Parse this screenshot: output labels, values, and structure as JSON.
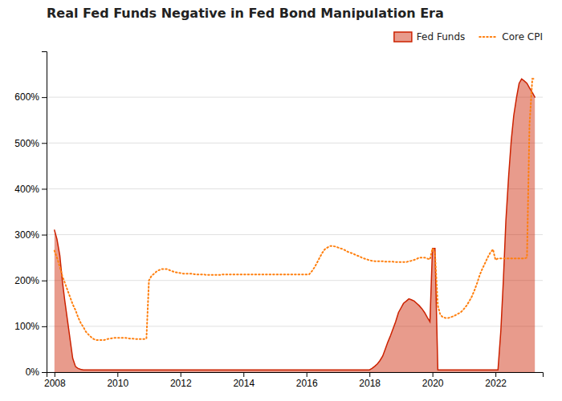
{
  "chart_data": {
    "type": "line",
    "title": "Real Fed Funds Negative in Fed Bond Manipulation Era",
    "x": [
      2008.0,
      2008.08,
      2008.17,
      2008.25,
      2008.33,
      2008.42,
      2008.5,
      2008.58,
      2008.67,
      2008.75,
      2008.83,
      2008.92,
      2009.0,
      2009.08,
      2009.17,
      2009.25,
      2009.33,
      2009.42,
      2009.5,
      2009.58,
      2009.67,
      2009.75,
      2009.83,
      2009.92,
      2010.0,
      2010.08,
      2010.17,
      2010.25,
      2010.33,
      2010.42,
      2010.5,
      2010.58,
      2010.67,
      2010.75,
      2010.83,
      2010.92,
      2011.0,
      2011.08,
      2011.17,
      2011.25,
      2011.33,
      2011.42,
      2011.5,
      2011.58,
      2011.67,
      2011.75,
      2011.83,
      2011.92,
      2012.0,
      2012.08,
      2012.17,
      2012.25,
      2012.33,
      2012.42,
      2012.5,
      2012.58,
      2012.67,
      2012.75,
      2012.83,
      2012.92,
      2013.0,
      2013.08,
      2013.17,
      2013.25,
      2013.33,
      2013.42,
      2013.5,
      2013.58,
      2013.67,
      2013.75,
      2013.83,
      2013.92,
      2014.0,
      2014.08,
      2014.17,
      2014.25,
      2014.33,
      2014.42,
      2014.5,
      2014.58,
      2014.67,
      2014.75,
      2014.83,
      2014.92,
      2015.0,
      2015.08,
      2015.17,
      2015.25,
      2015.33,
      2015.42,
      2015.5,
      2015.58,
      2015.67,
      2015.75,
      2015.83,
      2015.92,
      2016.0,
      2016.08,
      2016.17,
      2016.25,
      2016.33,
      2016.42,
      2016.5,
      2016.58,
      2016.67,
      2016.75,
      2016.83,
      2016.92,
      2017.0,
      2017.08,
      2017.17,
      2017.25,
      2017.33,
      2017.42,
      2017.5,
      2017.58,
      2017.67,
      2017.75,
      2017.83,
      2017.92,
      2018.0,
      2018.08,
      2018.17,
      2018.25,
      2018.33,
      2018.42,
      2018.5,
      2018.58,
      2018.67,
      2018.75,
      2018.83,
      2018.92,
      2019.0,
      2019.08,
      2019.17,
      2019.25,
      2019.33,
      2019.42,
      2019.5,
      2019.58,
      2019.67,
      2019.75,
      2019.83,
      2019.92,
      2020.0,
      2020.08,
      2020.17,
      2020.25,
      2020.33,
      2020.42,
      2020.5,
      2020.58,
      2020.67,
      2020.75,
      2020.83,
      2020.92,
      2021.0,
      2021.08,
      2021.17,
      2021.25,
      2021.33,
      2021.42,
      2021.5,
      2021.58,
      2021.67,
      2021.75,
      2021.83,
      2021.92,
      2022.0,
      2022.08,
      2022.17,
      2022.25,
      2022.33,
      2022.42,
      2022.5,
      2022.58,
      2022.67,
      2022.75,
      2022.83,
      2022.92,
      2023.0,
      2023.08,
      2023.17,
      2023.25
    ],
    "series": [
      {
        "name": "Fed Funds",
        "type": "area",
        "color": "#cc2200",
        "values": [
          310,
          290,
          255,
          200,
          155,
          110,
          70,
          30,
          12,
          8,
          6,
          5,
          5,
          5,
          5,
          5,
          5,
          5,
          5,
          5,
          5,
          5,
          5,
          5,
          5,
          5,
          5,
          5,
          5,
          5,
          5,
          5,
          5,
          5,
          5,
          5,
          5,
          5,
          5,
          5,
          5,
          5,
          5,
          5,
          5,
          5,
          5,
          5,
          5,
          5,
          5,
          5,
          5,
          5,
          5,
          5,
          5,
          5,
          5,
          5,
          5,
          5,
          5,
          5,
          5,
          5,
          5,
          5,
          5,
          5,
          5,
          5,
          5,
          5,
          5,
          5,
          5,
          5,
          5,
          5,
          5,
          5,
          5,
          5,
          5,
          5,
          5,
          5,
          5,
          5,
          5,
          5,
          5,
          5,
          5,
          5,
          5,
          5,
          5,
          5,
          5,
          5,
          5,
          5,
          5,
          5,
          5,
          5,
          5,
          5,
          5,
          5,
          5,
          5,
          5,
          5,
          5,
          5,
          5,
          5,
          5,
          8,
          13,
          18,
          25,
          35,
          50,
          65,
          80,
          95,
          110,
          130,
          140,
          150,
          155,
          160,
          158,
          155,
          150,
          145,
          138,
          130,
          120,
          110,
          270,
          270,
          5,
          5,
          5,
          5,
          5,
          5,
          5,
          5,
          5,
          5,
          5,
          5,
          5,
          5,
          5,
          5,
          5,
          5,
          5,
          5,
          5,
          5,
          5,
          5,
          90,
          200,
          330,
          430,
          505,
          560,
          600,
          630,
          640,
          635,
          630,
          620,
          610,
          600
        ]
      },
      {
        "name": "Core CPI",
        "type": "line",
        "line_style": "dotted",
        "values": [
          265,
          250,
          230,
          210,
          195,
          178,
          163,
          148,
          135,
          120,
          108,
          98,
          88,
          82,
          76,
          72,
          70,
          70,
          70,
          70,
          72,
          73,
          74,
          75,
          75,
          75,
          75,
          75,
          74,
          73,
          73,
          72,
          72,
          72,
          72,
          73,
          200,
          210,
          215,
          220,
          223,
          225,
          225,
          225,
          222,
          220,
          218,
          217,
          216,
          215,
          215,
          215,
          215,
          214,
          213,
          213,
          213,
          213,
          212,
          212,
          212,
          212,
          212,
          212,
          213,
          213,
          213,
          213,
          213,
          213,
          213,
          213,
          213,
          213,
          213,
          213,
          213,
          213,
          213,
          213,
          213,
          213,
          213,
          213,
          213,
          213,
          213,
          213,
          213,
          213,
          213,
          213,
          213,
          213,
          213,
          213,
          213,
          213,
          220,
          228,
          238,
          250,
          260,
          268,
          272,
          275,
          275,
          274,
          272,
          270,
          268,
          265,
          262,
          260,
          258,
          255,
          253,
          250,
          248,
          246,
          244,
          243,
          242,
          242,
          242,
          242,
          241,
          241,
          241,
          241,
          240,
          240,
          240,
          240,
          240,
          242,
          243,
          245,
          247,
          250,
          250,
          250,
          248,
          246,
          270,
          260,
          145,
          125,
          120,
          118,
          118,
          120,
          122,
          125,
          128,
          132,
          138,
          145,
          155,
          165,
          178,
          195,
          212,
          225,
          238,
          250,
          260,
          268,
          245,
          248,
          248,
          248,
          248,
          248,
          248,
          248,
          248,
          248,
          248,
          248,
          250,
          540,
          640,
          640
        ]
      }
    ],
    "xlim": [
      2007.75,
      2023.5
    ],
    "xticks": [
      2008,
      2010,
      2012,
      2014,
      2016,
      2018,
      2020,
      2022
    ],
    "ylim": [
      0,
      700
    ],
    "yticks": [
      {
        "value": 0,
        "label": "0%"
      },
      {
        "value": 100,
        "label": "100%"
      },
      {
        "value": 200,
        "label": "200%"
      },
      {
        "value": 300,
        "label": "300%"
      },
      {
        "value": 400,
        "label": "400%"
      },
      {
        "value": 500,
        "label": "500%"
      },
      {
        "value": 600,
        "label": "600%"
      }
    ],
    "grid": true,
    "legend": "top-right"
  }
}
